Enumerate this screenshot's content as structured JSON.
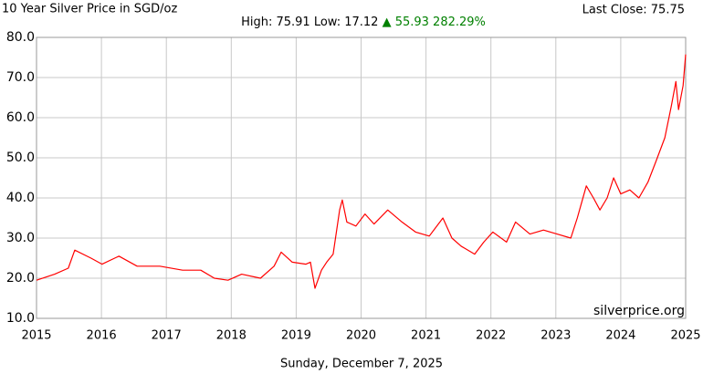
{
  "chart_data": {
    "type": "line",
    "title": "10 Year Silver Price in SGD/oz",
    "last_close": "Last Close: 75.75",
    "stats": "High: 75.91 Low: 17.12",
    "change": "▲ 55.93 282.29%",
    "change_color": "#008000",
    "date": "Sunday, December 7, 2025",
    "watermark": "silverprice.org",
    "color": "#ff0000",
    "grid": true,
    "xlim": [
      2015,
      2025
    ],
    "xticks": [
      2015,
      2016,
      2017,
      2018,
      2019,
      2020,
      2021,
      2022,
      2023,
      2024,
      2025
    ],
    "ylim": [
      10,
      80
    ],
    "yticks": [
      {
        "value": 10,
        "label": "10.0"
      },
      {
        "value": 20,
        "label": "20.0"
      },
      {
        "value": 30,
        "label": "30.0"
      },
      {
        "value": 40,
        "label": "40.0"
      },
      {
        "value": 50,
        "label": "50.0"
      },
      {
        "value": 60,
        "label": "60.0"
      },
      {
        "value": 70,
        "label": "70.0"
      },
      {
        "value": 80,
        "label": "80.0"
      }
    ],
    "x": [
      2015,
      2015.28,
      2015.49,
      2015.59,
      2015.84,
      2016.01,
      2016.27,
      2016.55,
      2016.9,
      2017.25,
      2017.53,
      2017.74,
      2017.95,
      2018.16,
      2018.45,
      2018.66,
      2018.77,
      2018.94,
      2019.15,
      2019.22,
      2019.29,
      2019.39,
      2019.47,
      2019.57,
      2019.67,
      2019.71,
      2019.78,
      2019.92,
      2020.06,
      2020.2,
      2020.41,
      2020.63,
      2020.84,
      2021.05,
      2021.26,
      2021.4,
      2021.54,
      2021.75,
      2021.89,
      2022.03,
      2022.24,
      2022.38,
      2022.6,
      2022.81,
      2023.02,
      2023.23,
      2023.33,
      2023.47,
      2023.58,
      2023.68,
      2023.79,
      2023.89,
      2024.0,
      2024.14,
      2024.28,
      2024.42,
      2024.54,
      2024.68,
      2024.78,
      2024.85,
      2024.89,
      2024.96,
      2025
    ],
    "values": [
      19.5,
      21,
      22.5,
      27,
      25,
      23.5,
      25.5,
      23,
      23,
      22,
      22,
      20,
      19.5,
      21,
      20,
      23,
      26.5,
      24,
      23.5,
      24,
      17.5,
      22,
      24,
      26,
      37,
      39.5,
      34,
      33,
      36,
      33.5,
      37,
      34,
      31.5,
      30.5,
      35,
      30,
      28,
      26,
      29,
      31.5,
      29,
      34,
      31,
      32,
      31,
      30,
      35,
      43,
      40,
      37,
      40,
      45,
      41,
      42,
      40,
      44,
      49,
      55,
      63,
      69,
      62,
      68,
      75.75
    ]
  }
}
